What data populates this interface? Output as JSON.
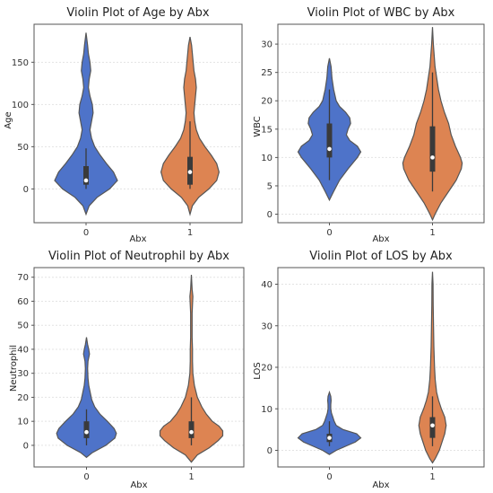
{
  "chart_data": [
    {
      "type": "violin",
      "title": "Violin Plot of Age by Abx",
      "xlabel": "Abx",
      "ylabel": "Age",
      "categories": [
        "0",
        "1"
      ],
      "ylim": [
        -40,
        195
      ],
      "yticks": [
        0,
        50,
        100,
        150
      ],
      "grid": true,
      "series": [
        {
          "category": "0",
          "color": "#4e73c9",
          "quartiles": [
            5,
            10,
            27
          ],
          "whiskers": [
            0,
            48
          ],
          "profile": [
            [
              -30,
              0
            ],
            [
              -20,
              4
            ],
            [
              -10,
              14
            ],
            [
              0,
              30
            ],
            [
              10,
              40
            ],
            [
              20,
              35
            ],
            [
              30,
              26
            ],
            [
              40,
              18
            ],
            [
              50,
              11
            ],
            [
              60,
              7
            ],
            [
              70,
              5
            ],
            [
              80,
              7
            ],
            [
              90,
              9
            ],
            [
              100,
              8
            ],
            [
              110,
              5
            ],
            [
              120,
              3
            ],
            [
              130,
              4
            ],
            [
              140,
              6
            ],
            [
              150,
              5
            ],
            [
              160,
              3
            ],
            [
              170,
              2
            ],
            [
              185,
              0
            ]
          ]
        },
        {
          "category": "1",
          "color": "#dd8452",
          "quartiles": [
            5,
            20,
            38
          ],
          "whiskers": [
            0,
            80
          ],
          "profile": [
            [
              -30,
              0
            ],
            [
              -20,
              3
            ],
            [
              -10,
              11
            ],
            [
              0,
              24
            ],
            [
              10,
              34
            ],
            [
              20,
              37
            ],
            [
              30,
              34
            ],
            [
              40,
              27
            ],
            [
              50,
              19
            ],
            [
              60,
              12
            ],
            [
              70,
              8
            ],
            [
              80,
              6
            ],
            [
              90,
              5
            ],
            [
              100,
              6
            ],
            [
              110,
              7
            ],
            [
              120,
              8
            ],
            [
              130,
              7
            ],
            [
              140,
              5
            ],
            [
              150,
              4
            ],
            [
              160,
              3
            ],
            [
              170,
              2
            ],
            [
              180,
              0
            ]
          ]
        }
      ]
    },
    {
      "type": "violin",
      "title": "Violin Plot of WBC by Abx",
      "xlabel": "Abx",
      "ylabel": "WBC",
      "categories": [
        "0",
        "1"
      ],
      "ylim": [
        -1.5,
        33.5
      ],
      "yticks": [
        0,
        5,
        10,
        15,
        20,
        25,
        30
      ],
      "grid": true,
      "series": [
        {
          "category": "0",
          "color": "#4e73c9",
          "quartiles": [
            10,
            11.5,
            16
          ],
          "whiskers": [
            6,
            22
          ],
          "profile": [
            [
              2.5,
              0
            ],
            [
              4,
              5
            ],
            [
              6,
              12
            ],
            [
              8,
              22
            ],
            [
              10,
              33
            ],
            [
              11,
              37
            ],
            [
              12,
              33
            ],
            [
              13,
              24
            ],
            [
              14,
              20
            ],
            [
              15,
              22
            ],
            [
              16,
              25
            ],
            [
              17,
              24
            ],
            [
              18,
              19
            ],
            [
              19,
              12
            ],
            [
              20,
              8
            ],
            [
              22,
              5
            ],
            [
              24,
              3
            ],
            [
              26,
              2
            ],
            [
              27.5,
              0
            ]
          ]
        },
        {
          "category": "1",
          "color": "#dd8452",
          "quartiles": [
            7.5,
            10,
            15.5
          ],
          "whiskers": [
            4,
            25
          ],
          "profile": [
            [
              -1,
              0
            ],
            [
              0,
              3
            ],
            [
              2,
              10
            ],
            [
              4,
              19
            ],
            [
              6,
              28
            ],
            [
              8,
              34
            ],
            [
              9,
              35
            ],
            [
              10,
              33
            ],
            [
              12,
              27
            ],
            [
              14,
              22
            ],
            [
              16,
              19
            ],
            [
              18,
              14
            ],
            [
              20,
              10
            ],
            [
              22,
              7
            ],
            [
              24,
              5
            ],
            [
              26,
              3
            ],
            [
              28,
              2
            ],
            [
              30,
              1
            ],
            [
              33,
              0
            ]
          ]
        }
      ]
    },
    {
      "type": "violin",
      "title": "Violin Plot of Neutrophil  by Abx",
      "xlabel": "Abx",
      "ylabel": "Neutrophil",
      "categories": [
        "0",
        "1"
      ],
      "ylim": [
        -9,
        74
      ],
      "yticks": [
        0,
        10,
        20,
        30,
        40,
        50,
        60,
        70
      ],
      "grid": true,
      "series": [
        {
          "category": "0",
          "color": "#4e73c9",
          "quartiles": [
            3,
            5.5,
            10
          ],
          "whiskers": [
            0,
            15
          ],
          "profile": [
            [
              -5,
              0
            ],
            [
              -3,
              8
            ],
            [
              0,
              26
            ],
            [
              3,
              38
            ],
            [
              5,
              40
            ],
            [
              7,
              37
            ],
            [
              10,
              28
            ],
            [
              13,
              18
            ],
            [
              16,
              11
            ],
            [
              19,
              7
            ],
            [
              22,
              5
            ],
            [
              25,
              3
            ],
            [
              28,
              2
            ],
            [
              32,
              1.5
            ],
            [
              35,
              2
            ],
            [
              38,
              4
            ],
            [
              40,
              3
            ],
            [
              42,
              1.5
            ],
            [
              45,
              0
            ]
          ]
        },
        {
          "category": "1",
          "color": "#dd8452",
          "quartiles": [
            3,
            5.5,
            10
          ],
          "whiskers": [
            0,
            20
          ],
          "profile": [
            [
              -7,
              0
            ],
            [
              -4,
              8
            ],
            [
              -1,
              24
            ],
            [
              2,
              36
            ],
            [
              4,
              42
            ],
            [
              6,
              42
            ],
            [
              8,
              37
            ],
            [
              10,
              28
            ],
            [
              13,
              20
            ],
            [
              16,
              14
            ],
            [
              20,
              8
            ],
            [
              25,
              4
            ],
            [
              30,
              2
            ],
            [
              35,
              1.5
            ],
            [
              40,
              1.5
            ],
            [
              45,
              1
            ],
            [
              55,
              1
            ],
            [
              62,
              2
            ],
            [
              65,
              1
            ],
            [
              71,
              0
            ]
          ]
        }
      ]
    },
    {
      "type": "violin",
      "title": "Violin Plot of LOS by Abx",
      "xlabel": "Abx",
      "ylabel": "LOS",
      "categories": [
        "0",
        "1"
      ],
      "ylim": [
        -4,
        44
      ],
      "yticks": [
        0,
        10,
        20,
        30,
        40
      ],
      "grid": true,
      "series": [
        {
          "category": "0",
          "color": "#4e73c9",
          "quartiles": [
            2,
            3,
            4
          ],
          "whiskers": [
            1,
            7
          ],
          "profile": [
            [
              -1,
              0
            ],
            [
              0,
              10
            ],
            [
              1,
              24
            ],
            [
              2,
              38
            ],
            [
              3,
              46
            ],
            [
              4,
              40
            ],
            [
              5,
              20
            ],
            [
              6,
              10
            ],
            [
              7,
              7
            ],
            [
              8,
              5
            ],
            [
              9,
              3
            ],
            [
              10,
              2
            ],
            [
              11,
              2
            ],
            [
              12,
              2.5
            ],
            [
              13,
              2
            ],
            [
              14,
              0
            ]
          ]
        },
        {
          "category": "1",
          "color": "#dd8452",
          "quartiles": [
            3,
            6,
            8
          ],
          "whiskers": [
            1,
            13
          ],
          "profile": [
            [
              -3,
              0
            ],
            [
              -2,
              4
            ],
            [
              0,
              10
            ],
            [
              2,
              14
            ],
            [
              4,
              18
            ],
            [
              6,
              20
            ],
            [
              8,
              18
            ],
            [
              10,
              13
            ],
            [
              12,
              9
            ],
            [
              14,
              6
            ],
            [
              17,
              4
            ],
            [
              20,
              3
            ],
            [
              25,
              2
            ],
            [
              30,
              1.5
            ],
            [
              35,
              1
            ],
            [
              40,
              0.8
            ],
            [
              43,
              0
            ]
          ]
        }
      ]
    }
  ]
}
